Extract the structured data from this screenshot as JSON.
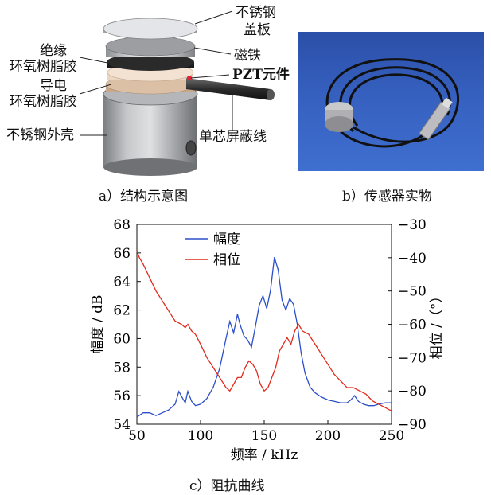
{
  "structure_labels": {
    "top_plate_1": "不锈钢",
    "top_plate_2": "盖板",
    "magnet": "磁铁",
    "pzt": "PZT元件",
    "cable": "单芯屏蔽线",
    "shell": "不锈钢外壳",
    "insul_1": "绝缘",
    "insul_2": "环氧树脂胶",
    "cond_1": "导电",
    "cond_2": "环氧树脂胶"
  },
  "captions": {
    "a": "a）结构示意图",
    "b": "b）传感器实物",
    "c": "c）阻抗曲线"
  },
  "colors": {
    "amplitude": "#2b4fc8",
    "phase": "#e02a1a",
    "photo_bg": "#3660bf"
  },
  "chart_data": {
    "type": "line",
    "xlabel": "频率 / kHz",
    "ylabel_left": "幅度 / dB",
    "ylabel_right": "相位 /（°）",
    "xlim": [
      50,
      250
    ],
    "ylim_left": [
      54,
      68
    ],
    "ylim_right": [
      -90,
      -30
    ],
    "x_ticks": [
      50,
      100,
      150,
      200,
      250
    ],
    "y_left_ticks": [
      54,
      56,
      58,
      60,
      62,
      64,
      66,
      68
    ],
    "y_right_ticks": [
      -90,
      -80,
      -70,
      -60,
      -50,
      -40,
      -30
    ],
    "legend_position": "top-left",
    "series": [
      {
        "name": "幅度",
        "axis": "left",
        "color": "#2b4fc8",
        "x": [
          50,
          55,
          60,
          65,
          70,
          75,
          80,
          83,
          86,
          88,
          90,
          93,
          96,
          100,
          105,
          110,
          115,
          120,
          123,
          126,
          129,
          131,
          134,
          137,
          140,
          143,
          146,
          149,
          152,
          155,
          158,
          161,
          164,
          167,
          170,
          173,
          176,
          179,
          182,
          186,
          190,
          195,
          200,
          205,
          210,
          215,
          218,
          221,
          224,
          228,
          232,
          236,
          240,
          245,
          250
        ],
        "y": [
          54.5,
          54.8,
          54.8,
          54.6,
          54.8,
          55.0,
          55.4,
          56.3,
          55.8,
          55.5,
          56.3,
          55.6,
          55.3,
          55.4,
          55.8,
          56.6,
          57.9,
          60.0,
          61.2,
          60.4,
          61.7,
          61.0,
          60.2,
          59.9,
          59.4,
          60.8,
          62.3,
          63.0,
          62.1,
          63.4,
          65.7,
          64.8,
          62.7,
          62.0,
          62.8,
          62.4,
          61.0,
          59.0,
          57.6,
          56.6,
          56.2,
          55.9,
          55.7,
          55.6,
          55.5,
          55.5,
          55.7,
          56.0,
          55.6,
          55.4,
          55.3,
          55.3,
          55.4,
          55.5,
          55.5
        ]
      },
      {
        "name": "相位",
        "axis": "right",
        "color": "#e02a1a",
        "x": [
          50,
          52,
          55,
          60,
          65,
          70,
          75,
          80,
          85,
          88,
          90,
          93,
          96,
          100,
          105,
          110,
          115,
          120,
          123,
          126,
          129,
          132,
          135,
          138,
          141,
          144,
          147,
          150,
          153,
          156,
          159,
          162,
          165,
          168,
          171,
          174,
          177,
          180,
          185,
          190,
          195,
          200,
          205,
          210,
          215,
          220,
          225,
          230,
          235,
          240,
          245,
          250
        ],
        "y": [
          -38,
          -40,
          -42,
          -46,
          -50,
          -53,
          -56,
          -59,
          -60,
          -61,
          -60,
          -62,
          -63,
          -66,
          -70,
          -73,
          -76,
          -79,
          -80,
          -78,
          -76,
          -76,
          -73,
          -71,
          -72,
          -74,
          -78,
          -80,
          -79,
          -76,
          -73,
          -68,
          -66,
          -64,
          -66,
          -62,
          -60,
          -62,
          -63,
          -66,
          -69,
          -72,
          -75,
          -77,
          -79,
          -79,
          -80,
          -81,
          -83,
          -84,
          -85,
          -86
        ]
      }
    ]
  }
}
